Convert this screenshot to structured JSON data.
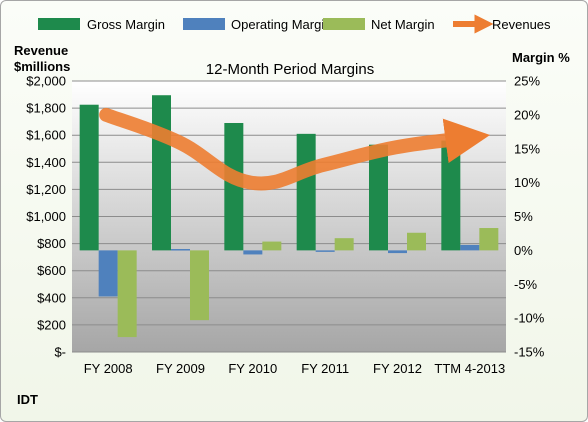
{
  "chart_data": {
    "type": "bar",
    "title": "12-Month Period Margins",
    "left_axis": {
      "label_line1": "Revenue",
      "label_line2": "$millions",
      "min": 0,
      "max": 2000,
      "step": 200,
      "tick_labels": [
        "$-",
        "$200",
        "$400",
        "$600",
        "$800",
        "$1,000",
        "$1,200",
        "$1,400",
        "$1,600",
        "$1,800",
        "$2,000"
      ]
    },
    "right_axis": {
      "label": "Margin %",
      "min": -15,
      "max": 25,
      "step": 5,
      "tick_labels": [
        "-15%",
        "-10%",
        "-5%",
        "0%",
        "5%",
        "10%",
        "15%",
        "20%",
        "25%"
      ]
    },
    "categories": [
      "FY 2008",
      "FY 2009",
      "FY 2010",
      "FY 2011",
      "FY 2012",
      "TTM 4-2013"
    ],
    "series": [
      {
        "name": "Gross Margin",
        "type": "bar",
        "axis": "right",
        "color": "#1e8a4c",
        "values": [
          21.5,
          22.9,
          18.8,
          17.2,
          15.6,
          16.2
        ]
      },
      {
        "name": "Operating Margin",
        "type": "bar",
        "axis": "right",
        "color": "#4f81bd",
        "values": [
          -6.8,
          0.2,
          -0.6,
          -0.2,
          -0.4,
          0.8
        ]
      },
      {
        "name": "Net Margin",
        "type": "bar",
        "axis": "right",
        "color": "#9bbb59",
        "values": [
          -12.8,
          -10.3,
          1.3,
          1.8,
          2.6,
          3.3
        ]
      },
      {
        "name": "Revenues",
        "type": "line",
        "axis": "left",
        "color": "#ed7d31",
        "values": [
          1750,
          1550,
          1250,
          1380,
          1510,
          1580
        ]
      }
    ],
    "grid": true,
    "legend_position": "top",
    "company_label": "IDT"
  }
}
